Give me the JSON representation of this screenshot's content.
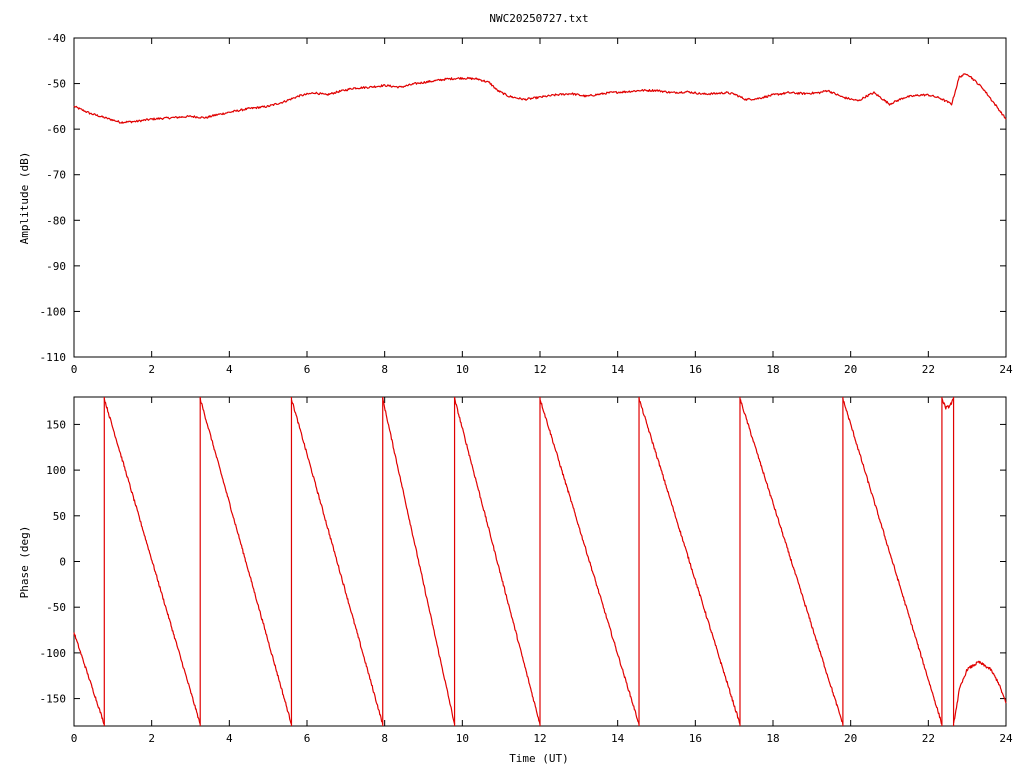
{
  "title": "NWC20250727.txt",
  "colors": {
    "series": "#e00000",
    "axis": "#000000",
    "background": "#ffffff"
  },
  "chart_data": [
    {
      "type": "line",
      "title": "NWC20250727.txt",
      "xlabel": "",
      "ylabel": "Amplitude (dB)",
      "xlim": [
        0,
        24
      ],
      "ylim": [
        -110,
        -40
      ],
      "x_ticks": [
        "0",
        "2",
        "4",
        "6",
        "8",
        "10",
        "12",
        "14",
        "16",
        "18",
        "20",
        "22",
        "24"
      ],
      "y_ticks": [
        "-40",
        "-50",
        "-60",
        "-70",
        "-80",
        "-90",
        "-100",
        "-110"
      ],
      "grid": false,
      "series": [
        {
          "x": [
            0,
            0.4,
            0.8,
            1.2,
            1.6,
            2.0,
            2.5,
            3.0,
            3.4,
            3.6,
            4.0,
            4.5,
            5.0,
            5.4,
            5.8,
            6.2,
            6.5,
            6.8,
            7.2,
            7.6,
            8.0,
            8.4,
            8.8,
            9.2,
            9.6,
            10.0,
            10.4,
            10.7,
            10.9,
            11.2,
            11.6,
            12.0,
            12.4,
            12.8,
            13.2,
            13.4,
            13.8,
            14.2,
            14.6,
            15.0,
            15.4,
            15.8,
            16.2,
            16.5,
            16.8,
            17.0,
            17.3,
            17.6,
            18.0,
            18.4,
            18.8,
            19.2,
            19.4,
            19.8,
            20.2,
            20.4,
            20.6,
            21.0,
            21.4,
            21.8,
            22.0,
            22.3,
            22.6,
            22.8,
            23.0,
            23.4,
            23.8,
            24.0
          ],
          "y": [
            -55,
            -56.5,
            -57.5,
            -58.5,
            -58.3,
            -57.8,
            -57.5,
            -57.2,
            -57.5,
            -57,
            -56.3,
            -55.5,
            -55,
            -54,
            -52.7,
            -52,
            -52.5,
            -51.8,
            -51,
            -50.8,
            -50.4,
            -50.8,
            -50,
            -49.5,
            -49,
            -48.8,
            -49,
            -49.8,
            -51.5,
            -52.8,
            -53.5,
            -53,
            -52.5,
            -52.2,
            -52.8,
            -52.5,
            -52,
            -51.8,
            -51.5,
            -51.5,
            -52,
            -51.8,
            -52.3,
            -52.2,
            -52,
            -52.3,
            -53.5,
            -53.3,
            -52.5,
            -52,
            -52.2,
            -52,
            -51.5,
            -53,
            -53.8,
            -52.8,
            -52,
            -54.5,
            -53,
            -52.5,
            -52.5,
            -53.2,
            -54.5,
            -48.5,
            -47.8,
            -51,
            -55.5,
            -57.8
          ]
        }
      ]
    },
    {
      "type": "line",
      "title": "",
      "xlabel": "Time (UT)",
      "ylabel": "Phase (deg)",
      "xlim": [
        0,
        24
      ],
      "ylim": [
        -180,
        180
      ],
      "x_ticks": [
        "0",
        "2",
        "4",
        "6",
        "8",
        "10",
        "12",
        "14",
        "16",
        "18",
        "20",
        "22",
        "24"
      ],
      "y_ticks": [
        "150",
        "100",
        "50",
        "0",
        "-50",
        "-100",
        "-150"
      ],
      "grid": false,
      "series": [
        {
          "segments": [
            {
              "x": [
                0,
                0.78
              ],
              "y": [
                -78,
                -178
              ]
            },
            {
              "x": [
                0.78,
                3.25
              ],
              "y": [
                178,
                -178
              ]
            },
            {
              "x": [
                3.25,
                5.6
              ],
              "y": [
                178,
                -178
              ]
            },
            {
              "x": [
                5.6,
                7.95
              ],
              "y": [
                178,
                -178
              ]
            },
            {
              "x": [
                7.95,
                9.8
              ],
              "y": [
                178,
                -178
              ]
            },
            {
              "x": [
                9.8,
                12.0
              ],
              "y": [
                178,
                -178
              ]
            },
            {
              "x": [
                12.0,
                14.55
              ],
              "y": [
                178,
                -178
              ]
            },
            {
              "x": [
                14.55,
                17.15
              ],
              "y": [
                178,
                -178
              ]
            },
            {
              "x": [
                17.15,
                19.8
              ],
              "y": [
                178,
                -178
              ]
            },
            {
              "x": [
                19.8,
                22.35
              ],
              "y": [
                178,
                -178
              ]
            },
            {
              "x": [
                22.35,
                22.45,
                22.55,
                22.65
              ],
              "y": [
                178,
                168,
                170,
                178
              ]
            },
            {
              "x": [
                22.65,
                22.8,
                23.0,
                23.3,
                23.6,
                23.8,
                24.0
              ],
              "y": [
                -178,
                -140,
                -118,
                -110,
                -118,
                -132,
                -155
              ]
            }
          ],
          "wraps": [
            0.78,
            3.25,
            5.6,
            7.95,
            9.8,
            12.0,
            14.55,
            17.15,
            19.8,
            22.35,
            22.65
          ]
        }
      ]
    }
  ]
}
